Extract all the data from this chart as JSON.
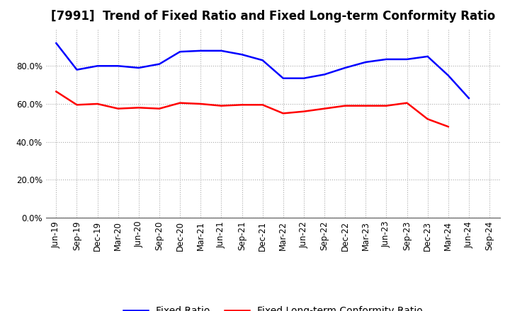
{
  "title": "[7991]  Trend of Fixed Ratio and Fixed Long-term Conformity Ratio",
  "x_labels": [
    "Jun-19",
    "Sep-19",
    "Dec-19",
    "Mar-20",
    "Jun-20",
    "Sep-20",
    "Dec-20",
    "Mar-21",
    "Jun-21",
    "Sep-21",
    "Dec-21",
    "Mar-22",
    "Jun-22",
    "Sep-22",
    "Dec-22",
    "Mar-23",
    "Jun-23",
    "Sep-23",
    "Dec-23",
    "Mar-24",
    "Jun-24",
    "Sep-24"
  ],
  "fixed_ratio": [
    92.0,
    78.0,
    80.0,
    80.0,
    79.0,
    81.0,
    87.5,
    88.0,
    88.0,
    86.0,
    83.0,
    73.5,
    73.5,
    75.5,
    79.0,
    82.0,
    83.5,
    83.5,
    85.0,
    75.0,
    63.0,
    null
  ],
  "fixed_lt_ratio": [
    66.5,
    59.5,
    60.0,
    57.5,
    58.0,
    57.5,
    60.5,
    60.0,
    59.0,
    59.5,
    59.5,
    55.0,
    56.0,
    57.5,
    59.0,
    59.0,
    59.0,
    60.5,
    52.0,
    48.0,
    null,
    null
  ],
  "fixed_ratio_color": "#0000FF",
  "fixed_lt_ratio_color": "#FF0000",
  "ylim": [
    0,
    100
  ],
  "yticks": [
    0,
    20,
    40,
    60,
    80
  ],
  "background_color": "#FFFFFF",
  "plot_bg_color": "#FFFFFF",
  "grid_color": "#AAAAAA",
  "title_fontsize": 12,
  "legend_fontsize": 10,
  "tick_fontsize": 8.5
}
